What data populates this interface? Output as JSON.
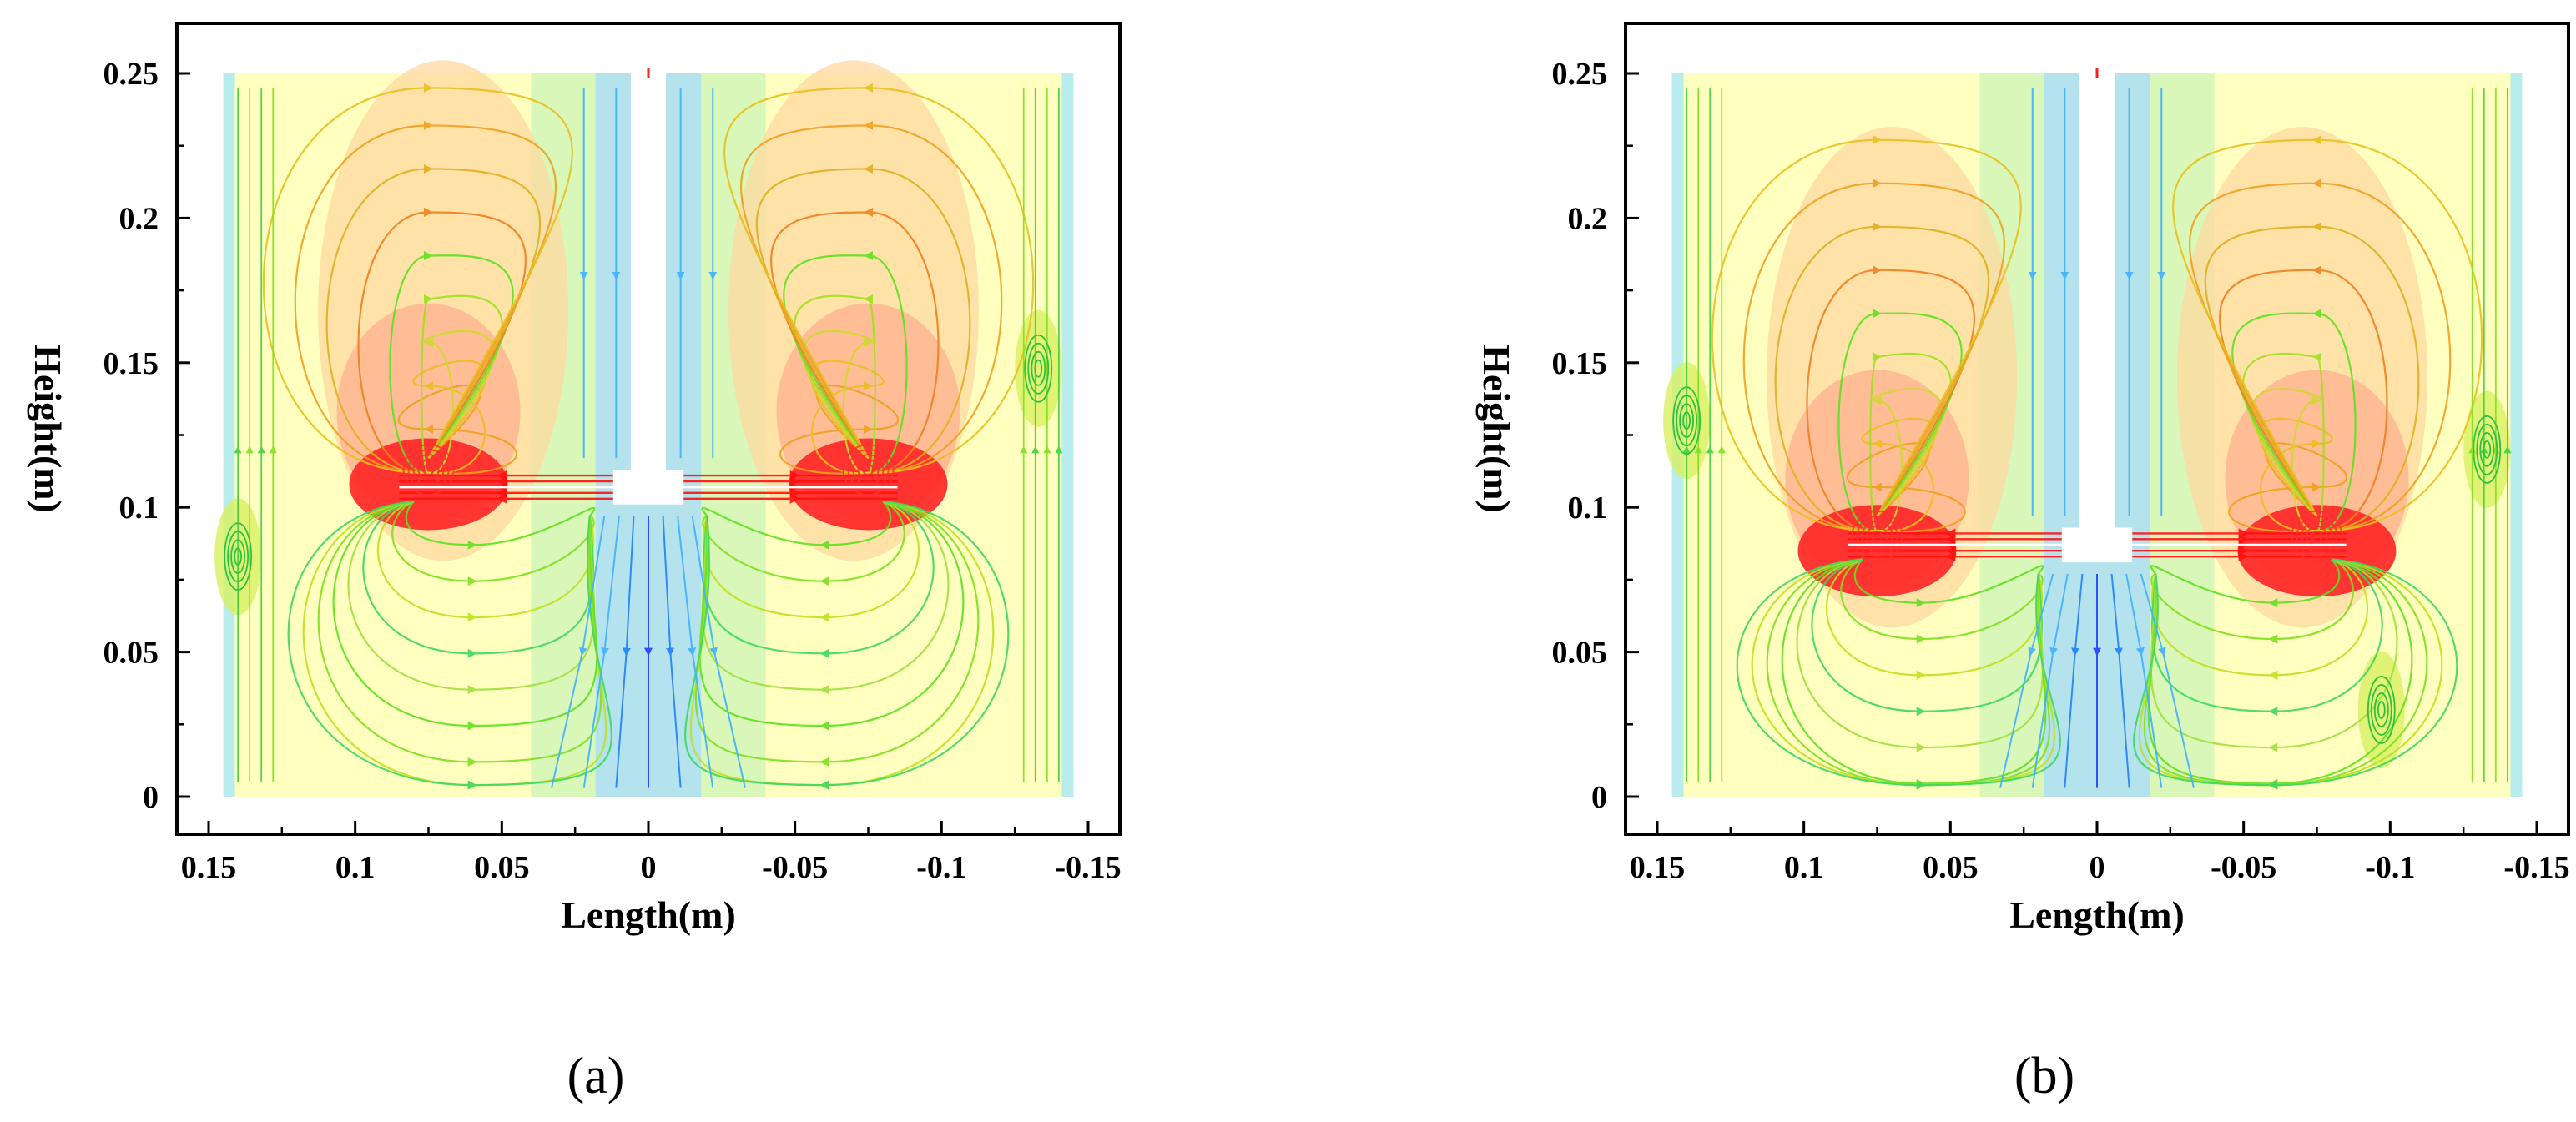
{
  "chart_data": [
    {
      "type": "streamline",
      "caption": "(a)",
      "xlabel": "Length(m)",
      "ylabel": "Height(m)",
      "xlim": [
        0.15,
        -0.15
      ],
      "ylim": [
        0,
        0.25
      ],
      "x_reversed": true,
      "x_ticks": [
        0.15,
        0.1,
        0.05,
        0,
        -0.05,
        -0.1,
        -0.15
      ],
      "x_tick_labels": [
        "0.15",
        "0.1",
        "0.05",
        "0",
        "-0.05",
        "-0.1",
        "-0.15"
      ],
      "y_ticks": [
        0,
        0.05,
        0.1,
        0.15,
        0.2,
        0.25
      ],
      "y_tick_labels": [
        "0",
        "0.05",
        "0.1",
        "0.15",
        "0.2",
        "0.25"
      ],
      "domain": {
        "x": [
          0.145,
          -0.145
        ],
        "y": [
          0,
          0.25
        ]
      },
      "impeller_height": 0.107,
      "impeller_radius": 0.085,
      "shaft_half_width": 0.006,
      "upper_vortex_centers": [
        {
          "x": 0.075,
          "y": 0.113
        },
        {
          "x": -0.075,
          "y": 0.113
        }
      ],
      "wall_vortex_centers": [
        {
          "x": -0.133,
          "y": 0.148
        },
        {
          "x": 0.14,
          "y": 0.083
        }
      ],
      "grid": false,
      "legend": "none"
    },
    {
      "type": "streamline",
      "caption": "(b)",
      "xlabel": "Length(m)",
      "ylabel": "Height(m)",
      "xlim": [
        0.15,
        -0.15
      ],
      "ylim": [
        0,
        0.25
      ],
      "x_reversed": true,
      "x_ticks": [
        0.15,
        0.1,
        0.05,
        0,
        -0.05,
        -0.1,
        -0.15
      ],
      "x_tick_labels": [
        "0.15",
        "0.1",
        "0.05",
        "0",
        "-0.05",
        "-0.1",
        "-0.15"
      ],
      "y_ticks": [
        0,
        0.05,
        0.1,
        0.15,
        0.2,
        0.25
      ],
      "y_tick_labels": [
        "0",
        "0.05",
        "0.1",
        "0.15",
        "0.2",
        "0.25"
      ],
      "domain": {
        "x": [
          0.145,
          -0.145
        ],
        "y": [
          0,
          0.25
        ]
      },
      "impeller_height": 0.087,
      "impeller_radius": 0.085,
      "shaft_half_width": 0.006,
      "upper_vortex_centers": [
        {
          "x": 0.075,
          "y": 0.09
        },
        {
          "x": -0.075,
          "y": 0.09
        }
      ],
      "wall_vortex_centers": [
        {
          "x": -0.133,
          "y": 0.12
        },
        {
          "x": 0.14,
          "y": 0.13
        },
        {
          "x": -0.097,
          "y": 0.03
        }
      ],
      "grid": false,
      "legend": "none"
    }
  ],
  "colors": {
    "background_field": "#ffffc0",
    "high_velocity": "#ff2020",
    "medium_high": "#ffa020",
    "medium": "#f0e030",
    "low_medium": "#40e020",
    "low": "#40c0ff",
    "lowest": "#2040ff"
  }
}
